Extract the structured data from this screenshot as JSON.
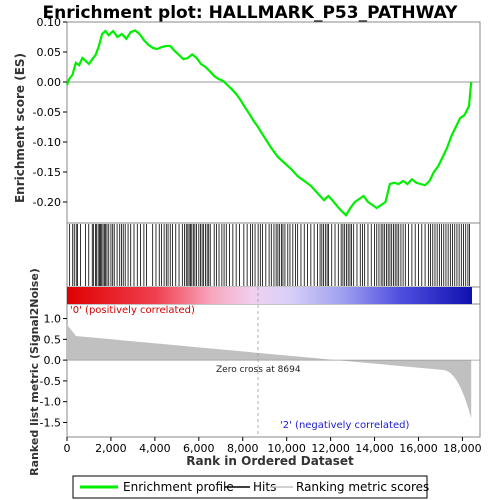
{
  "chart_data": {
    "type": "line",
    "title": "Enrichment plot: HALLMARK_P53_PATHWAY",
    "xlabel": "Rank in Ordered Dataset",
    "xlim": [
      0,
      18800
    ],
    "x_ticks": [
      0,
      2000,
      4000,
      6000,
      8000,
      10000,
      12000,
      14000,
      16000,
      18000
    ],
    "x_tick_labels": [
      "0",
      "2,000",
      "4,000",
      "6,000",
      "8,000",
      "10,000",
      "12,000",
      "14,000",
      "16,000",
      "18,000"
    ],
    "panels": {
      "enrichment": {
        "ylabel": "Enrichment score (ES)",
        "ylim": [
          -0.235,
          0.1
        ],
        "y_ticks": [
          -0.2,
          -0.15,
          -0.1,
          -0.05,
          0.0,
          0.05,
          0.1
        ],
        "y_tick_labels": [
          "-0.20",
          "-0.15",
          "-0.10",
          "-0.05",
          "0.00",
          "0.05",
          "0.10"
        ],
        "grid": false
      },
      "ranked_metric": {
        "ylabel": "Ranked list metric (Signal2Noise)",
        "ylim": [
          -1.85,
          1.35
        ],
        "y_ticks": [
          -1.5,
          -1.0,
          -0.5,
          0.0,
          0.5,
          1.0
        ],
        "y_tick_labels": [
          "-1.5",
          "-1.0",
          "-0.5",
          "0.0",
          "0.5",
          "1.0"
        ]
      }
    },
    "series": [
      {
        "name": "Enrichment profile",
        "color": "#00ee00",
        "x": [
          0,
          100,
          250,
          400,
          550,
          700,
          850,
          1000,
          1150,
          1300,
          1450,
          1600,
          1750,
          1900,
          2100,
          2300,
          2500,
          2700,
          2900,
          3100,
          3300,
          3500,
          3700,
          3900,
          4100,
          4300,
          4500,
          4700,
          4900,
          5100,
          5300,
          5500,
          5700,
          5900,
          6100,
          6300,
          6500,
          6700,
          6900,
          7100,
          7300,
          7500,
          7700,
          7900,
          8100,
          8300,
          8500,
          8694,
          9000,
          9300,
          9600,
          9900,
          10200,
          10500,
          10800,
          11100,
          11400,
          11700,
          11900,
          12100,
          12300,
          12500,
          12700,
          12900,
          13100,
          13300,
          13500,
          13700,
          13900,
          14100,
          14300,
          14500,
          14700,
          14900,
          15100,
          15300,
          15500,
          15700,
          15900,
          16100,
          16300,
          16500,
          16700,
          16900,
          17100,
          17300,
          17500,
          17700,
          17900,
          18100,
          18300,
          18400
        ],
        "y": [
          -0.005,
          0.005,
          0.012,
          0.032,
          0.028,
          0.04,
          0.035,
          0.03,
          0.038,
          0.045,
          0.06,
          0.08,
          0.085,
          0.078,
          0.085,
          0.075,
          0.08,
          0.072,
          0.083,
          0.086,
          0.08,
          0.07,
          0.062,
          0.057,
          0.055,
          0.058,
          0.06,
          0.06,
          0.052,
          0.045,
          0.038,
          0.04,
          0.046,
          0.04,
          0.03,
          0.025,
          0.018,
          0.01,
          0.005,
          0.002,
          -0.005,
          -0.012,
          -0.02,
          -0.03,
          -0.042,
          -0.053,
          -0.065,
          -0.075,
          -0.093,
          -0.11,
          -0.125,
          -0.135,
          -0.145,
          -0.157,
          -0.165,
          -0.173,
          -0.185,
          -0.197,
          -0.19,
          -0.198,
          -0.207,
          -0.215,
          -0.222,
          -0.21,
          -0.2,
          -0.195,
          -0.19,
          -0.2,
          -0.205,
          -0.21,
          -0.205,
          -0.2,
          -0.17,
          -0.168,
          -0.17,
          -0.165,
          -0.17,
          -0.162,
          -0.168,
          -0.17,
          -0.172,
          -0.165,
          -0.15,
          -0.14,
          -0.125,
          -0.11,
          -0.09,
          -0.075,
          -0.06,
          -0.055,
          -0.04,
          0.0
        ]
      }
    ],
    "hits": [
      120,
      260,
      330,
      420,
      480,
      610,
      840,
      990,
      1150,
      1200,
      1300,
      1350,
      1420,
      1480,
      1530,
      1580,
      1640,
      1700,
      1760,
      1820,
      1900,
      2000,
      2080,
      2150,
      2280,
      2400,
      2480,
      2560,
      2650,
      2780,
      2900,
      3050,
      3200,
      3350,
      3500,
      3620,
      3900,
      4050,
      4200,
      4300,
      4420,
      4520,
      4600,
      4700,
      4800,
      4950,
      5100,
      5250,
      5350,
      5430,
      5500,
      5560,
      5620,
      5680,
      5750,
      5820,
      5900,
      6000,
      6080,
      6150,
      6220,
      6300,
      6380,
      6450,
      6520,
      6700,
      6800,
      6920,
      7050,
      7150,
      7250,
      7400,
      7550,
      7700,
      7850,
      8050,
      8200,
      8350,
      8450,
      8560,
      8700,
      8800,
      8900,
      9050,
      9200,
      9300,
      9420,
      9520,
      9600,
      9680,
      9760,
      9830,
      9920,
      10050,
      10150,
      10280,
      10400,
      10500,
      10650,
      10800,
      10950,
      11100,
      11250,
      11400,
      11520,
      11600,
      11680,
      11760,
      11840,
      11900,
      12050,
      12200,
      12350,
      12480,
      12560,
      12640,
      12720,
      12800,
      12880,
      12950,
      13050,
      13200,
      13350,
      13450,
      13550,
      13700,
      13850,
      14000,
      14100,
      14200,
      14300,
      14380,
      14460,
      14540,
      14620,
      14700,
      14780,
      14860,
      14940,
      15020,
      15100,
      15200,
      15300,
      15400,
      15550,
      15700,
      15850,
      16000,
      16150,
      16300,
      16450,
      16550,
      16650,
      16750,
      16850,
      16950,
      17050,
      17150,
      17250,
      17350,
      17450,
      17550,
      17650,
      17750,
      17850,
      17950,
      18050,
      18150,
      18250,
      18320
    ],
    "legend": {
      "position": "bottom",
      "entries": [
        "Enrichment profile",
        "Hits",
        "Ranking metric scores"
      ]
    },
    "annotations": {
      "positive_label": "'0' (positively correlated)",
      "negative_label": "'2' (negatively correlated)",
      "zero_cross_label": "Zero cross at 8694",
      "zero_cross_rank": 8694
    }
  }
}
